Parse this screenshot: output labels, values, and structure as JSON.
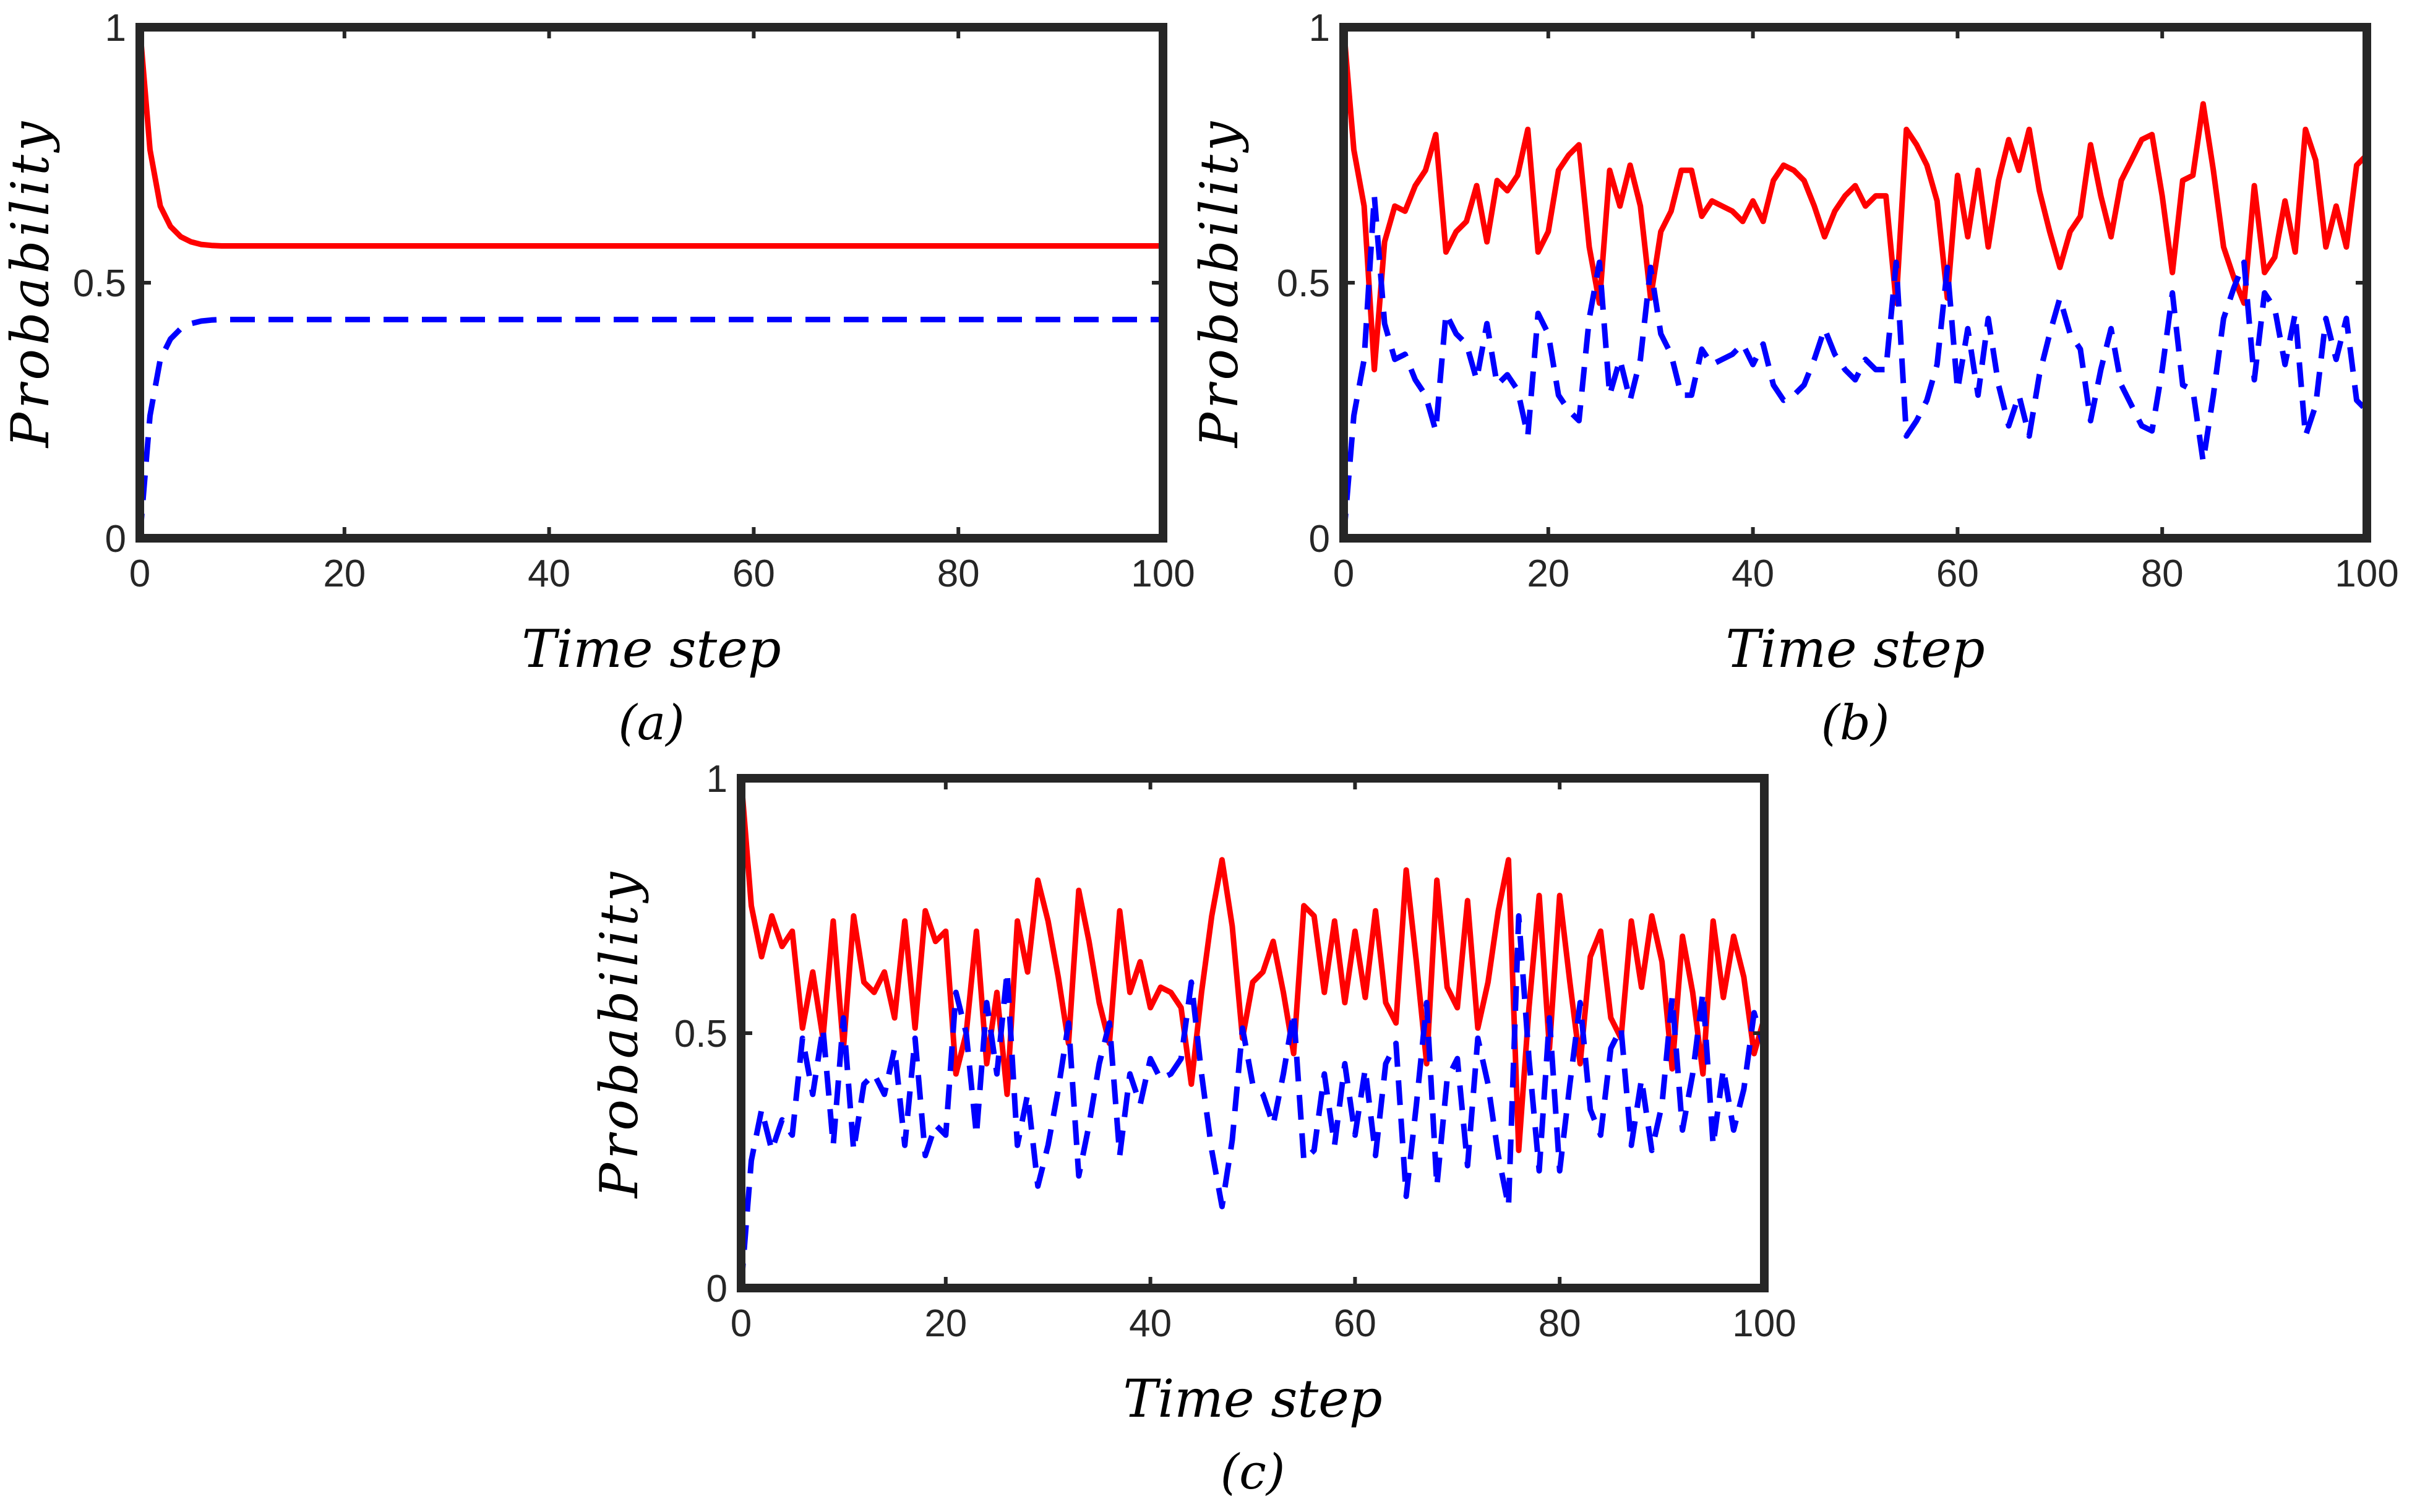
{
  "chart_data": [
    {
      "panel": "(a)",
      "type": "line",
      "xlabel": "Time step",
      "ylabel": "Probability",
      "xlim": [
        0,
        100
      ],
      "ylim": [
        0,
        1
      ],
      "xticks": [
        "0",
        "20",
        "40",
        "60",
        "80",
        "100"
      ],
      "yticks": [
        "0",
        "0.5",
        "1"
      ],
      "series": [
        {
          "name": "red-solid",
          "color": "#ff0000",
          "style": "solid",
          "x": [
            0,
            1,
            2,
            3,
            4,
            5,
            6,
            7,
            8,
            10,
            15,
            20,
            30,
            40,
            50,
            60,
            70,
            80,
            90,
            100
          ],
          "y": [
            1.0,
            0.76,
            0.65,
            0.61,
            0.59,
            0.58,
            0.575,
            0.573,
            0.572,
            0.572,
            0.572,
            0.572,
            0.572,
            0.572,
            0.572,
            0.572,
            0.572,
            0.572,
            0.572,
            0.572
          ]
        },
        {
          "name": "blue-dashed",
          "color": "#0000ff",
          "style": "dashed",
          "x": [
            0,
            1,
            2,
            3,
            4,
            5,
            6,
            7,
            8,
            10,
            15,
            20,
            30,
            40,
            50,
            60,
            70,
            80,
            90,
            100
          ],
          "y": [
            0.0,
            0.24,
            0.35,
            0.39,
            0.41,
            0.42,
            0.425,
            0.427,
            0.428,
            0.428,
            0.428,
            0.428,
            0.428,
            0.428,
            0.428,
            0.428,
            0.428,
            0.428,
            0.428,
            0.428
          ]
        }
      ]
    },
    {
      "panel": "(b)",
      "type": "line",
      "xlabel": "Time step",
      "ylabel": "Probability",
      "xlim": [
        0,
        100
      ],
      "ylim": [
        0,
        1
      ],
      "xticks": [
        "0",
        "20",
        "40",
        "60",
        "80",
        "100"
      ],
      "yticks": [
        "0",
        "0.5",
        "1"
      ],
      "series": [
        {
          "name": "red-solid",
          "color": "#ff0000",
          "style": "solid",
          "x": [
            0,
            1,
            2,
            3,
            4,
            5,
            6,
            7,
            8,
            9,
            10,
            11,
            12,
            13,
            14,
            15,
            16,
            17,
            18,
            19,
            20,
            21,
            22,
            23,
            24,
            25,
            26,
            27,
            28,
            29,
            30,
            31,
            32,
            33,
            34,
            35,
            36,
            37,
            38,
            39,
            40,
            41,
            42,
            43,
            44,
            45,
            46,
            47,
            48,
            49,
            50,
            51,
            52,
            53,
            54,
            55,
            56,
            57,
            58,
            59,
            60,
            61,
            62,
            63,
            64,
            65,
            66,
            67,
            68,
            69,
            70,
            71,
            72,
            73,
            74,
            75,
            76,
            77,
            78,
            79,
            80,
            81,
            82,
            83,
            84,
            85,
            86,
            87,
            88,
            89,
            90,
            91,
            92,
            93,
            94,
            95,
            96,
            97,
            98,
            99,
            100
          ],
          "y": [
            1.0,
            0.76,
            0.65,
            0.33,
            0.58,
            0.65,
            0.64,
            0.69,
            0.72,
            0.79,
            0.56,
            0.6,
            0.62,
            0.69,
            0.58,
            0.7,
            0.68,
            0.71,
            0.8,
            0.56,
            0.6,
            0.72,
            0.75,
            0.77,
            0.57,
            0.46,
            0.72,
            0.65,
            0.73,
            0.65,
            0.47,
            0.6,
            0.64,
            0.72,
            0.72,
            0.63,
            0.66,
            0.65,
            0.64,
            0.62,
            0.66,
            0.62,
            0.7,
            0.73,
            0.72,
            0.7,
            0.65,
            0.59,
            0.64,
            0.67,
            0.69,
            0.65,
            0.67,
            0.67,
            0.46,
            0.8,
            0.77,
            0.73,
            0.66,
            0.47,
            0.71,
            0.59,
            0.72,
            0.57,
            0.7,
            0.78,
            0.72,
            0.8,
            0.68,
            0.6,
            0.53,
            0.6,
            0.63,
            0.77,
            0.67,
            0.59,
            0.7,
            0.74,
            0.78,
            0.79,
            0.67,
            0.52,
            0.7,
            0.71,
            0.85,
            0.72,
            0.57,
            0.51,
            0.46,
            0.69,
            0.52,
            0.55,
            0.66,
            0.56,
            0.8,
            0.74,
            0.57,
            0.65,
            0.57,
            0.73,
            0.75
          ]
        },
        {
          "name": "blue-dashed",
          "color": "#0000ff",
          "style": "dashed",
          "x": [
            0,
            1,
            2,
            3,
            4,
            5,
            6,
            7,
            8,
            9,
            10,
            11,
            12,
            13,
            14,
            15,
            16,
            17,
            18,
            19,
            20,
            21,
            22,
            23,
            24,
            25,
            26,
            27,
            28,
            29,
            30,
            31,
            32,
            33,
            34,
            35,
            36,
            37,
            38,
            39,
            40,
            41,
            42,
            43,
            44,
            45,
            46,
            47,
            48,
            49,
            50,
            51,
            52,
            53,
            54,
            55,
            56,
            57,
            58,
            59,
            60,
            61,
            62,
            63,
            64,
            65,
            66,
            67,
            68,
            69,
            70,
            71,
            72,
            73,
            74,
            75,
            76,
            77,
            78,
            79,
            80,
            81,
            82,
            83,
            84,
            85,
            86,
            87,
            88,
            89,
            90,
            91,
            92,
            93,
            94,
            95,
            96,
            97,
            98,
            99,
            100
          ],
          "y": [
            0.0,
            0.24,
            0.35,
            0.67,
            0.42,
            0.35,
            0.36,
            0.31,
            0.28,
            0.21,
            0.44,
            0.4,
            0.38,
            0.31,
            0.42,
            0.3,
            0.32,
            0.29,
            0.2,
            0.44,
            0.4,
            0.28,
            0.25,
            0.23,
            0.43,
            0.54,
            0.28,
            0.35,
            0.27,
            0.35,
            0.53,
            0.4,
            0.36,
            0.28,
            0.28,
            0.37,
            0.34,
            0.35,
            0.36,
            0.38,
            0.34,
            0.38,
            0.3,
            0.27,
            0.28,
            0.3,
            0.35,
            0.41,
            0.36,
            0.33,
            0.31,
            0.35,
            0.33,
            0.33,
            0.54,
            0.2,
            0.23,
            0.27,
            0.34,
            0.53,
            0.29,
            0.41,
            0.28,
            0.43,
            0.3,
            0.22,
            0.28,
            0.2,
            0.32,
            0.4,
            0.47,
            0.4,
            0.37,
            0.23,
            0.33,
            0.41,
            0.3,
            0.26,
            0.22,
            0.21,
            0.33,
            0.48,
            0.3,
            0.29,
            0.15,
            0.28,
            0.43,
            0.49,
            0.54,
            0.31,
            0.48,
            0.45,
            0.34,
            0.44,
            0.2,
            0.26,
            0.43,
            0.35,
            0.43,
            0.27,
            0.25
          ]
        }
      ]
    },
    {
      "panel": "(c)",
      "type": "line",
      "xlabel": "Time step",
      "ylabel": "Probability",
      "xlim": [
        0,
        100
      ],
      "ylim": [
        0,
        1
      ],
      "xticks": [
        "0",
        "20",
        "40",
        "60",
        "80",
        "100"
      ],
      "yticks": [
        "0",
        "0.5",
        "1"
      ],
      "series": [
        {
          "name": "red-solid",
          "color": "#ff0000",
          "style": "solid",
          "x": [
            0,
            1,
            2,
            3,
            4,
            5,
            6,
            7,
            8,
            9,
            10,
            11,
            12,
            13,
            14,
            15,
            16,
            17,
            18,
            19,
            20,
            21,
            22,
            23,
            24,
            25,
            26,
            27,
            28,
            29,
            30,
            31,
            32,
            33,
            34,
            35,
            36,
            37,
            38,
            39,
            40,
            41,
            42,
            43,
            44,
            45,
            46,
            47,
            48,
            49,
            50,
            51,
            52,
            53,
            54,
            55,
            56,
            57,
            58,
            59,
            60,
            61,
            62,
            63,
            64,
            65,
            66,
            67,
            68,
            69,
            70,
            71,
            72,
            73,
            74,
            75,
            76,
            77,
            78,
            79,
            80,
            81,
            82,
            83,
            84,
            85,
            86,
            87,
            88,
            89,
            90,
            91,
            92,
            93,
            94,
            95,
            96,
            97,
            98,
            99,
            100
          ],
          "y": [
            1.0,
            0.75,
            0.65,
            0.73,
            0.67,
            0.7,
            0.51,
            0.62,
            0.49,
            0.72,
            0.47,
            0.73,
            0.6,
            0.58,
            0.62,
            0.53,
            0.72,
            0.51,
            0.74,
            0.68,
            0.7,
            0.42,
            0.5,
            0.7,
            0.44,
            0.58,
            0.38,
            0.72,
            0.62,
            0.8,
            0.72,
            0.61,
            0.48,
            0.78,
            0.68,
            0.56,
            0.48,
            0.74,
            0.58,
            0.64,
            0.55,
            0.59,
            0.58,
            0.55,
            0.4,
            0.58,
            0.73,
            0.84,
            0.71,
            0.49,
            0.6,
            0.62,
            0.68,
            0.58,
            0.46,
            0.75,
            0.73,
            0.58,
            0.72,
            0.56,
            0.7,
            0.57,
            0.74,
            0.56,
            0.52,
            0.82,
            0.64,
            0.44,
            0.8,
            0.59,
            0.55,
            0.76,
            0.51,
            0.6,
            0.74,
            0.84,
            0.27,
            0.55,
            0.77,
            0.47,
            0.77,
            0.6,
            0.44,
            0.65,
            0.7,
            0.53,
            0.49,
            0.72,
            0.59,
            0.73,
            0.64,
            0.43,
            0.69,
            0.58,
            0.42,
            0.72,
            0.57,
            0.69,
            0.61,
            0.46,
            0.53
          ]
        },
        {
          "name": "blue-dashed",
          "color": "#0000ff",
          "style": "dashed",
          "x": [
            0,
            1,
            2,
            3,
            4,
            5,
            6,
            7,
            8,
            9,
            10,
            11,
            12,
            13,
            14,
            15,
            16,
            17,
            18,
            19,
            20,
            21,
            22,
            23,
            24,
            25,
            26,
            27,
            28,
            29,
            30,
            31,
            32,
            33,
            34,
            35,
            36,
            37,
            38,
            39,
            40,
            41,
            42,
            43,
            44,
            45,
            46,
            47,
            48,
            49,
            50,
            51,
            52,
            53,
            54,
            55,
            56,
            57,
            58,
            59,
            60,
            61,
            62,
            63,
            64,
            65,
            66,
            67,
            68,
            69,
            70,
            71,
            72,
            73,
            74,
            75,
            76,
            77,
            78,
            79,
            80,
            81,
            82,
            83,
            84,
            85,
            86,
            87,
            88,
            89,
            90,
            91,
            92,
            93,
            94,
            95,
            96,
            97,
            98,
            99,
            100
          ],
          "y": [
            0.0,
            0.25,
            0.35,
            0.27,
            0.33,
            0.3,
            0.49,
            0.38,
            0.51,
            0.28,
            0.53,
            0.27,
            0.4,
            0.42,
            0.38,
            0.47,
            0.28,
            0.49,
            0.26,
            0.32,
            0.3,
            0.58,
            0.5,
            0.3,
            0.56,
            0.42,
            0.62,
            0.28,
            0.38,
            0.2,
            0.28,
            0.39,
            0.52,
            0.22,
            0.32,
            0.44,
            0.52,
            0.26,
            0.42,
            0.36,
            0.45,
            0.41,
            0.42,
            0.45,
            0.6,
            0.42,
            0.27,
            0.16,
            0.29,
            0.51,
            0.4,
            0.38,
            0.32,
            0.42,
            0.54,
            0.25,
            0.27,
            0.42,
            0.28,
            0.44,
            0.3,
            0.43,
            0.26,
            0.44,
            0.48,
            0.18,
            0.36,
            0.56,
            0.2,
            0.41,
            0.45,
            0.24,
            0.49,
            0.4,
            0.26,
            0.16,
            0.73,
            0.45,
            0.23,
            0.53,
            0.23,
            0.4,
            0.56,
            0.35,
            0.3,
            0.47,
            0.51,
            0.28,
            0.41,
            0.27,
            0.36,
            0.57,
            0.31,
            0.42,
            0.58,
            0.28,
            0.43,
            0.31,
            0.39,
            0.54,
            0.47
          ]
        }
      ]
    }
  ]
}
